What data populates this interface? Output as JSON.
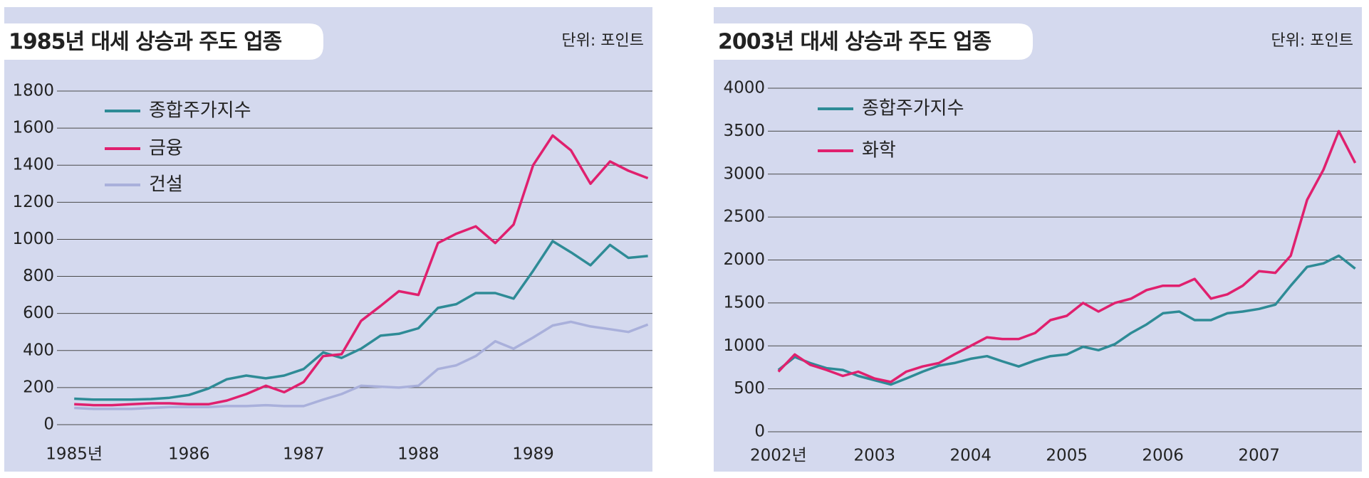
{
  "chart_data": [
    {
      "type": "line",
      "title": "1985년 대세 상승과 주도 업종",
      "unit_label": "단위: 포인트",
      "x": [
        1985,
        1985.17,
        1985.33,
        1985.5,
        1985.67,
        1985.83,
        1986,
        1986.17,
        1986.33,
        1986.5,
        1986.67,
        1986.83,
        1987,
        1987.17,
        1987.33,
        1987.5,
        1987.67,
        1987.83,
        1988,
        1988.17,
        1988.33,
        1988.5,
        1988.67,
        1988.83,
        1989,
        1989.17,
        1989.33,
        1989.5,
        1989.67,
        1989.83,
        1990
      ],
      "series": [
        {
          "name": "종합주가지수",
          "color": "#2e8b96",
          "values": [
            140,
            135,
            135,
            135,
            138,
            145,
            160,
            195,
            245,
            265,
            250,
            265,
            300,
            390,
            360,
            410,
            480,
            490,
            520,
            630,
            650,
            710,
            710,
            680,
            830,
            990,
            930,
            860,
            970,
            900,
            910
          ]
        },
        {
          "name": "금융",
          "color": "#e0206e",
          "values": [
            110,
            105,
            105,
            110,
            115,
            115,
            110,
            110,
            130,
            165,
            210,
            175,
            230,
            370,
            380,
            560,
            640,
            720,
            700,
            980,
            1030,
            1070,
            980,
            1080,
            1400,
            1560,
            1480,
            1300,
            1420,
            1370,
            1330
          ]
        },
        {
          "name": "건설",
          "color": "#a9b0db",
          "values": [
            90,
            85,
            85,
            85,
            90,
            95,
            95,
            95,
            100,
            100,
            105,
            100,
            100,
            135,
            165,
            210,
            205,
            200,
            210,
            300,
            320,
            370,
            450,
            410,
            470,
            535,
            555,
            530,
            515,
            500,
            540
          ]
        }
      ],
      "xlim": [
        1984.85,
        1990.04
      ],
      "ylim": [
        0,
        1800
      ],
      "xticks": [
        {
          "value": 1985,
          "label": "1985년"
        },
        1986,
        1987,
        1988,
        1989
      ],
      "yticks": [
        0,
        200,
        400,
        600,
        800,
        1000,
        1200,
        1400,
        1600,
        1800
      ],
      "grid": true,
      "legend": "upper left"
    },
    {
      "type": "line",
      "title": "2003년 대세 상승과 주도 업종",
      "unit_label": "단위: 포인트",
      "x": [
        2002,
        2002.17,
        2002.33,
        2002.5,
        2002.67,
        2002.83,
        2003,
        2003.17,
        2003.33,
        2003.5,
        2003.67,
        2003.83,
        2004,
        2004.17,
        2004.33,
        2004.5,
        2004.67,
        2004.83,
        2005,
        2005.17,
        2005.33,
        2005.5,
        2005.67,
        2005.83,
        2006,
        2006.17,
        2006.33,
        2006.5,
        2006.67,
        2006.83,
        2007,
        2007.17,
        2007.33,
        2007.5,
        2007.67,
        2007.83,
        2008
      ],
      "series": [
        {
          "name": "종합주가지수",
          "color": "#2e8b96",
          "values": [
            720,
            870,
            800,
            740,
            720,
            650,
            600,
            550,
            620,
            700,
            770,
            800,
            850,
            880,
            820,
            760,
            830,
            880,
            900,
            990,
            950,
            1020,
            1150,
            1250,
            1380,
            1400,
            1300,
            1300,
            1380,
            1400,
            1430,
            1480,
            1700,
            1920,
            1960,
            2050,
            1900
          ]
        },
        {
          "name": "화학",
          "color": "#e0206e",
          "values": [
            700,
            900,
            780,
            720,
            650,
            700,
            620,
            580,
            700,
            760,
            800,
            900,
            1000,
            1100,
            1080,
            1080,
            1150,
            1300,
            1350,
            1500,
            1400,
            1500,
            1550,
            1650,
            1700,
            1700,
            1780,
            1550,
            1600,
            1700,
            1870,
            1850,
            2050,
            2700,
            3050,
            3500,
            3130
          ]
        }
      ],
      "xlim": [
        2001.89,
        2008.07
      ],
      "ylim": [
        0,
        4000
      ],
      "xticks": [
        {
          "value": 2002,
          "label": "2002년"
        },
        2003,
        2004,
        2005,
        2006,
        2007
      ],
      "yticks": [
        0,
        500,
        1000,
        1500,
        2000,
        2500,
        3000,
        3500,
        4000
      ],
      "grid": true,
      "legend": "upper left"
    }
  ]
}
